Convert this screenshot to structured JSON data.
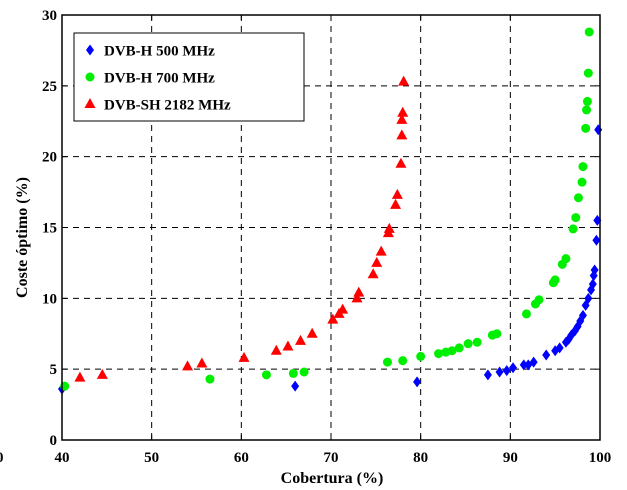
{
  "chart_data": {
    "type": "scatter",
    "title": "",
    "xlabel": "Cobertura (%)",
    "ylabel": "Coste óptimo (%)",
    "xlim": [
      40,
      100
    ],
    "ylim": [
      0,
      30
    ],
    "xticks": [
      40,
      50,
      60,
      70,
      80,
      90,
      100
    ],
    "yticks": [
      0,
      5,
      10,
      15,
      20,
      25,
      30
    ],
    "stray_label": "0",
    "grid": true,
    "legend_position": "top-left",
    "series": [
      {
        "name": "DVB-H 500 MHz",
        "marker": "diamond",
        "color": "#0000ff",
        "points": [
          [
            40.0,
            3.6
          ],
          [
            66.0,
            3.8
          ],
          [
            79.6,
            4.1
          ],
          [
            87.5,
            4.6
          ],
          [
            88.8,
            4.8
          ],
          [
            89.6,
            4.9
          ],
          [
            90.3,
            5.1
          ],
          [
            91.5,
            5.3
          ],
          [
            92.0,
            5.3
          ],
          [
            92.6,
            5.5
          ],
          [
            94.0,
            6.0
          ],
          [
            95.0,
            6.3
          ],
          [
            95.5,
            6.5
          ],
          [
            96.2,
            6.9
          ],
          [
            96.5,
            7.1
          ],
          [
            96.8,
            7.4
          ],
          [
            97.2,
            7.7
          ],
          [
            97.5,
            8.0
          ],
          [
            97.8,
            8.4
          ],
          [
            98.1,
            8.8
          ],
          [
            98.4,
            9.5
          ],
          [
            98.7,
            10.0
          ],
          [
            99.0,
            10.6
          ],
          [
            99.2,
            11.0
          ],
          [
            99.3,
            11.6
          ],
          [
            99.4,
            12.0
          ],
          [
            99.6,
            14.1
          ],
          [
            99.7,
            15.5
          ],
          [
            99.8,
            21.9
          ]
        ]
      },
      {
        "name": "DVB-H 700 MHz",
        "marker": "circle",
        "color": "#00ee00",
        "points": [
          [
            40.3,
            3.8
          ],
          [
            56.5,
            4.3
          ],
          [
            62.8,
            4.6
          ],
          [
            65.8,
            4.7
          ],
          [
            67.0,
            4.8
          ],
          [
            76.3,
            5.5
          ],
          [
            78.0,
            5.6
          ],
          [
            80.0,
            5.9
          ],
          [
            82.0,
            6.1
          ],
          [
            82.8,
            6.2
          ],
          [
            83.5,
            6.3
          ],
          [
            84.3,
            6.5
          ],
          [
            85.3,
            6.8
          ],
          [
            86.3,
            6.9
          ],
          [
            88.0,
            7.4
          ],
          [
            88.5,
            7.5
          ],
          [
            91.8,
            8.9
          ],
          [
            92.8,
            9.6
          ],
          [
            93.2,
            9.9
          ],
          [
            94.8,
            11.1
          ],
          [
            95.0,
            11.3
          ],
          [
            95.8,
            12.4
          ],
          [
            96.2,
            12.8
          ],
          [
            97.0,
            14.9
          ],
          [
            97.3,
            15.7
          ],
          [
            97.6,
            17.1
          ],
          [
            98.0,
            18.2
          ],
          [
            98.1,
            19.3
          ],
          [
            98.4,
            22.0
          ],
          [
            98.5,
            23.3
          ],
          [
            98.6,
            23.9
          ],
          [
            98.7,
            25.9
          ],
          [
            98.8,
            28.8
          ]
        ]
      },
      {
        "name": "DVB-SH 2182 MHz",
        "marker": "triangle",
        "color": "#ff0000",
        "points": [
          [
            42.0,
            4.4
          ],
          [
            44.5,
            4.6
          ],
          [
            54.0,
            5.2
          ],
          [
            55.6,
            5.4
          ],
          [
            60.3,
            5.8
          ],
          [
            63.9,
            6.3
          ],
          [
            65.2,
            6.6
          ],
          [
            66.6,
            7.0
          ],
          [
            67.9,
            7.5
          ],
          [
            70.2,
            8.5
          ],
          [
            70.9,
            8.9
          ],
          [
            71.3,
            9.2
          ],
          [
            72.9,
            10.0
          ],
          [
            73.1,
            10.4
          ],
          [
            74.7,
            11.7
          ],
          [
            75.1,
            12.5
          ],
          [
            75.6,
            13.3
          ],
          [
            76.4,
            14.6
          ],
          [
            76.5,
            14.9
          ],
          [
            77.2,
            16.6
          ],
          [
            77.4,
            17.3
          ],
          [
            77.8,
            19.5
          ],
          [
            77.9,
            21.5
          ],
          [
            77.9,
            22.6
          ],
          [
            78.0,
            23.1
          ],
          [
            78.1,
            25.3
          ]
        ]
      }
    ]
  }
}
